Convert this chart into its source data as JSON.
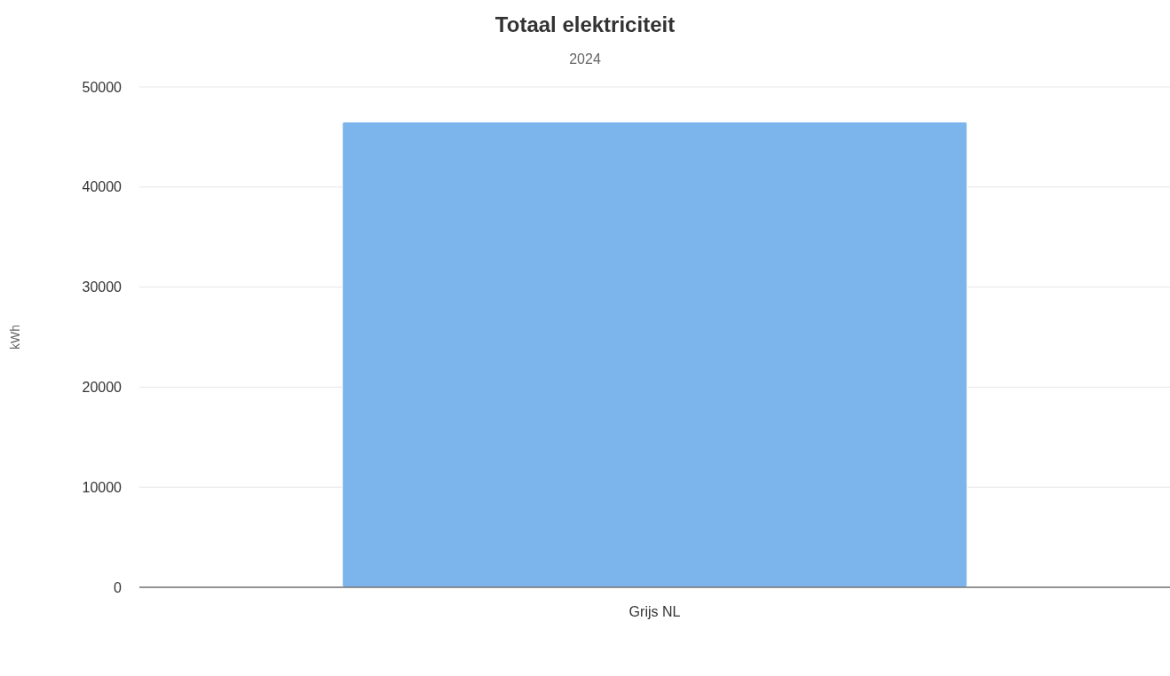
{
  "chart_data": {
    "type": "bar",
    "title": "Totaal elektriciteit",
    "subtitle": "2024",
    "ylabel": "kWh",
    "categories": [
      "Grijs NL"
    ],
    "series": [
      {
        "color": "#7cb5ec",
        "values": [
          46500
        ]
      }
    ],
    "ylim": [
      0,
      50000
    ],
    "yticks": [
      0,
      10000,
      20000,
      30000,
      40000,
      50000
    ],
    "grid": "y"
  }
}
